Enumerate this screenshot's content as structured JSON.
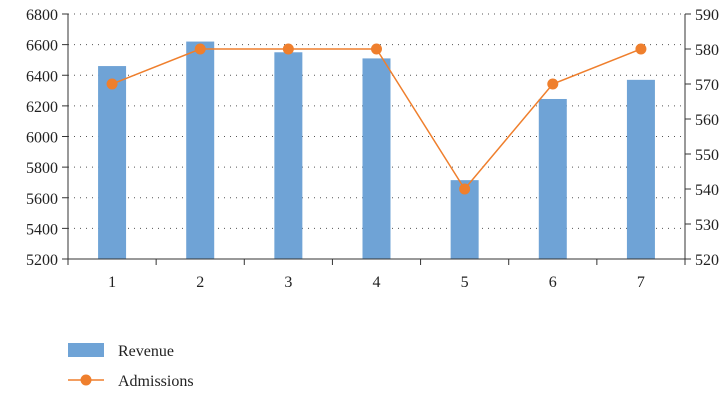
{
  "chart_data": {
    "type": "bar",
    "categories": [
      "1",
      "2",
      "3",
      "4",
      "5",
      "6",
      "7"
    ],
    "series": [
      {
        "name": "Revenue",
        "type": "bar",
        "axis": "left",
        "color": "#6fa3d6",
        "values": [
          6460,
          6620,
          6550,
          6510,
          5715,
          6245,
          6370
        ]
      },
      {
        "name": "Admissions",
        "type": "line",
        "axis": "right",
        "color": "#ef7f2d",
        "values": [
          570,
          580,
          580,
          580,
          540,
          570,
          580
        ]
      }
    ],
    "y_left": {
      "min": 5200,
      "max": 6800,
      "ticks": [
        "5200",
        "5400",
        "5600",
        "5800",
        "6000",
        "6200",
        "6400",
        "6600",
        "6800"
      ]
    },
    "y_right": {
      "min": 520,
      "max": 590,
      "ticks": [
        "520",
        "530",
        "540",
        "550",
        "560",
        "570",
        "580",
        "590"
      ]
    },
    "grid": true,
    "legend_position": "bottom-left",
    "title": "",
    "xlabel": "",
    "ylabel": ""
  }
}
